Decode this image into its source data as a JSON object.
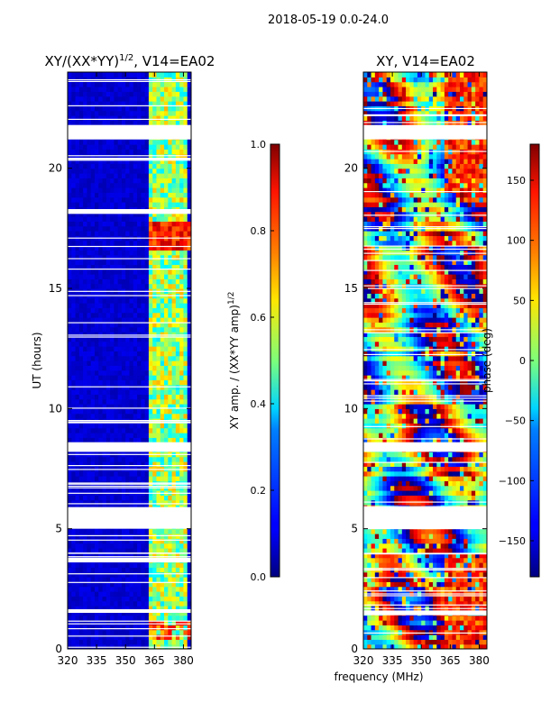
{
  "suptitle": "2018-05-19 0.0-24.0",
  "xlabel_shared": "frequency (MHz)",
  "chart_data": [
    {
      "type": "heatmap",
      "title": "XY/(XX*YY)",
      "title_sup": "1/2",
      "title_tail": ", V14=EA02",
      "ylabel": "UT (hours)",
      "xlim": [
        320,
        384
      ],
      "ylim": [
        0,
        24
      ],
      "xticks": [
        320,
        335,
        350,
        365,
        380
      ],
      "yticks": [
        0,
        5,
        10,
        15,
        20
      ],
      "colorbar": {
        "label": "XY amp. / (XX*YY amp)",
        "label_sup": "1/2",
        "range": [
          0.0,
          1.0
        ],
        "ticks": [
          "0.0",
          "0.2",
          "0.4",
          "0.6",
          "0.8",
          "1.0"
        ],
        "tick_values": [
          0.0,
          0.2,
          0.4,
          0.6,
          0.8,
          1.0
        ]
      },
      "colormap": "jet",
      "bright_channel_bands_mhz": [
        [
          363,
          367
        ],
        [
          368,
          371
        ],
        [
          372,
          376
        ],
        [
          377,
          381
        ]
      ],
      "flagged_gaps_hours": [
        [
          21.2,
          21.8
        ],
        [
          18.1,
          18.3
        ],
        [
          8.2,
          8.6
        ],
        [
          5.0,
          5.9
        ],
        [
          3.6,
          3.75
        ],
        [
          1.5,
          1.65
        ]
      ]
    },
    {
      "type": "heatmap",
      "title": "XY, V14=EA02",
      "xlim": [
        320,
        384
      ],
      "ylim": [
        0,
        24
      ],
      "xticks": [
        320,
        335,
        350,
        365,
        380
      ],
      "yticks": [
        0,
        5,
        10,
        15,
        20
      ],
      "colorbar": {
        "label": "phase (deg)",
        "range": [
          -180,
          180
        ],
        "ticks": [
          "−150",
          "−100",
          "−50",
          "0",
          "50",
          "100",
          "150"
        ],
        "tick_values": [
          -150,
          -100,
          -50,
          0,
          50,
          100,
          150
        ]
      },
      "colormap": "jet",
      "flagged_gaps_hours": [
        [
          21.2,
          21.8
        ],
        [
          8.2,
          8.6
        ],
        [
          5.0,
          5.9
        ],
        [
          1.4,
          1.6
        ]
      ]
    }
  ]
}
